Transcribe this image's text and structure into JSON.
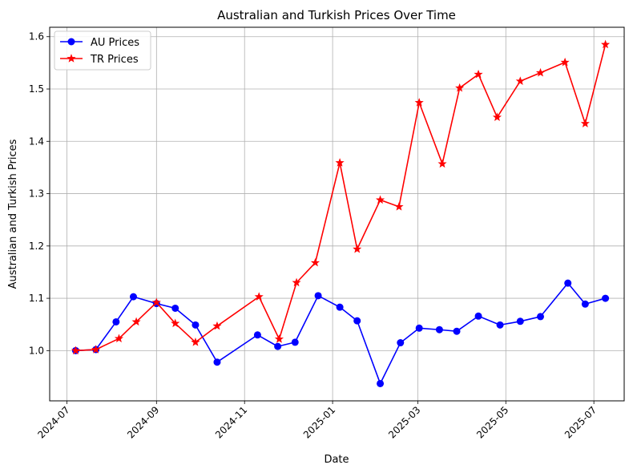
{
  "chart_data": {
    "type": "line",
    "title": "Australian and Turkish Prices Over Time",
    "xlabel": "Date",
    "ylabel": "Australian and Turkish Prices",
    "grid": true,
    "legend_position": "top-left",
    "xlim": [
      "2024-06-19",
      "2025-07-22"
    ],
    "ylim": [
      0.904,
      1.618
    ],
    "x_ticks": [
      "2024-07",
      "2024-09",
      "2024-11",
      "2025-01",
      "2025-03",
      "2025-05",
      "2025-07"
    ],
    "y_ticks": [
      "1.0",
      "1.1",
      "1.2",
      "1.3",
      "1.4",
      "1.5",
      "1.6"
    ],
    "series": [
      {
        "name": "AU Prices",
        "color": "#0000ff",
        "marker": "circle",
        "x": [
          "2024-07-07",
          "2024-07-21",
          "2024-08-04",
          "2024-08-16",
          "2024-09-01",
          "2024-09-14",
          "2024-09-28",
          "2024-10-13",
          "2024-11-10",
          "2024-11-24",
          "2024-12-06",
          "2024-12-22",
          "2025-01-06",
          "2025-01-18",
          "2025-02-03",
          "2025-02-17",
          "2025-03-02",
          "2025-03-16",
          "2025-03-28",
          "2025-04-12",
          "2025-04-27",
          "2025-05-11",
          "2025-05-25",
          "2025-06-13",
          "2025-06-25",
          "2025-07-09"
        ],
        "values": [
          1.0,
          1.002,
          1.055,
          1.103,
          1.09,
          1.081,
          1.049,
          0.978,
          1.03,
          1.008,
          1.016,
          1.105,
          1.083,
          1.057,
          0.937,
          1.015,
          1.043,
          1.04,
          1.037,
          1.066,
          1.049,
          1.056,
          1.065,
          1.129,
          1.089,
          1.1
        ]
      },
      {
        "name": "TR Prices",
        "color": "#ff0000",
        "marker": "star",
        "x": [
          "2024-07-07",
          "2024-07-21",
          "2024-08-06",
          "2024-08-18",
          "2024-09-01",
          "2024-09-14",
          "2024-09-28",
          "2024-10-13",
          "2024-11-11",
          "2024-11-25",
          "2024-12-07",
          "2024-12-20",
          "2025-01-06",
          "2025-01-18",
          "2025-02-03",
          "2025-02-16",
          "2025-03-02",
          "2025-03-18",
          "2025-03-30",
          "2025-04-12",
          "2025-04-25",
          "2025-05-11",
          "2025-05-25",
          "2025-06-11",
          "2025-06-25",
          "2025-07-09"
        ],
        "values": [
          1.0,
          1.002,
          1.023,
          1.055,
          1.092,
          1.052,
          1.016,
          1.047,
          1.103,
          1.022,
          1.13,
          1.168,
          1.359,
          1.194,
          1.288,
          1.275,
          1.474,
          1.357,
          1.502,
          1.528,
          1.446,
          1.515,
          1.531,
          1.551,
          1.434,
          1.585
        ]
      }
    ]
  }
}
